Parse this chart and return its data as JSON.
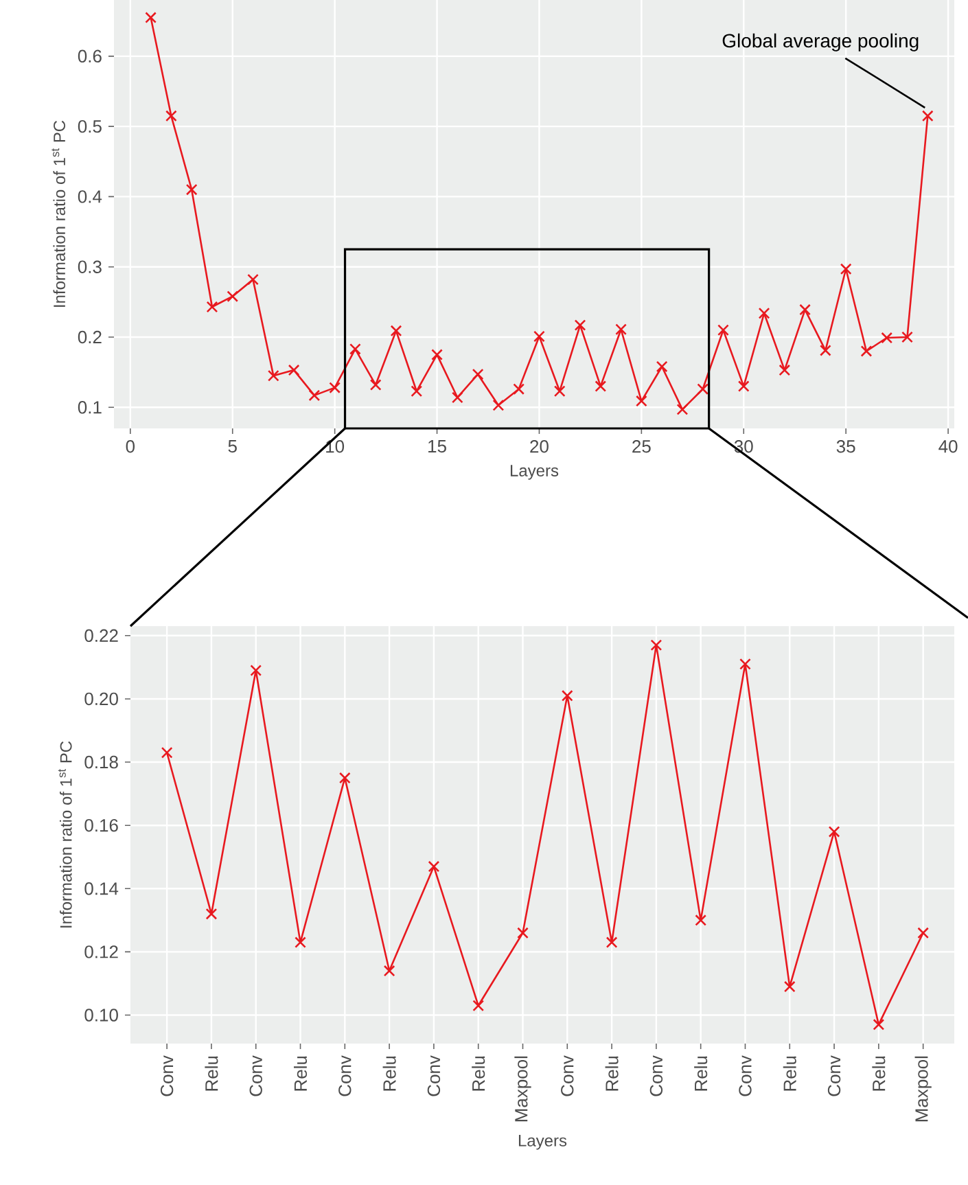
{
  "chart_data": [
    {
      "type": "line",
      "xlabel": "Layers",
      "ylabel": "Information ratio of 1$^{st}$ PC",
      "x": [
        1,
        2,
        3,
        4,
        5,
        6,
        7,
        8,
        9,
        10,
        11,
        12,
        13,
        14,
        15,
        16,
        17,
        18,
        19,
        20,
        21,
        22,
        23,
        24,
        25,
        26,
        27,
        28,
        29,
        30,
        31,
        32,
        33,
        34,
        35,
        36,
        37,
        38,
        39
      ],
      "series": [
        {
          "color": "#e8191f",
          "values": [
            0.655,
            0.515,
            0.41,
            0.243,
            0.258,
            0.282,
            0.145,
            0.153,
            0.117,
            0.128,
            0.183,
            0.132,
            0.209,
            0.123,
            0.175,
            0.114,
            0.147,
            0.103,
            0.126,
            0.201,
            0.123,
            0.217,
            0.13,
            0.211,
            0.109,
            0.158,
            0.097,
            0.126,
            0.21,
            0.13,
            0.234,
            0.153,
            0.239,
            0.181,
            0.297,
            0.18,
            0.199,
            0.2,
            0.515
          ]
        }
      ],
      "xlim": [
        -0.8,
        40.3
      ],
      "ylim": [
        0.07,
        0.68
      ],
      "xticks": [
        0,
        5,
        10,
        15,
        20,
        25,
        30,
        35,
        40
      ],
      "yticks": [
        0.1,
        0.2,
        0.3,
        0.4,
        0.5,
        0.6
      ],
      "grid": true,
      "marker": "cross",
      "line_style": "solid",
      "annotations": [
        {
          "text": "Global average pooling",
          "x": 39,
          "y": 0.515
        }
      ]
    },
    {
      "type": "line",
      "xlabel": "Layers",
      "ylabel": "Information ratio of 1$^{st}$ PC",
      "categories": [
        "Conv",
        "Relu",
        "Conv",
        "Relu",
        "Conv",
        "Relu",
        "Conv",
        "Relu",
        "Maxpool",
        "Conv",
        "Relu",
        "Conv",
        "Relu",
        "Conv",
        "Relu",
        "Conv",
        "Relu",
        "Maxpool"
      ],
      "series": [
        {
          "color": "#e8191f",
          "values": [
            0.183,
            0.132,
            0.209,
            0.123,
            0.175,
            0.114,
            0.147,
            0.103,
            0.126,
            0.201,
            0.123,
            0.217,
            0.13,
            0.211,
            0.109,
            0.158,
            0.097,
            0.126
          ]
        }
      ],
      "ylim": [
        0.091,
        0.223
      ],
      "yticks": [
        {
          "value": 0.1,
          "label": "0.10"
        },
        {
          "value": 0.12,
          "label": "0.12"
        },
        {
          "value": 0.14,
          "label": "0.14"
        },
        {
          "value": 0.16,
          "label": "0.16"
        },
        {
          "value": 0.18,
          "label": "0.18"
        },
        {
          "value": 0.2,
          "label": "0.20"
        },
        {
          "value": 0.22,
          "label": "0.22"
        }
      ],
      "grid": true,
      "marker": "cross",
      "line_style": "solid"
    }
  ]
}
